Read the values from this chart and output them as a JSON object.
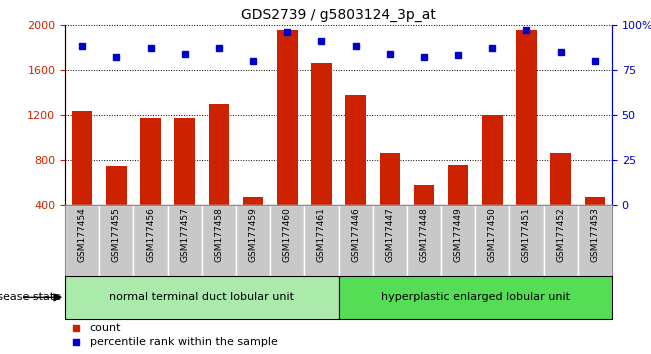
{
  "title": "GDS2739 / g5803124_3p_at",
  "samples": [
    "GSM177454",
    "GSM177455",
    "GSM177456",
    "GSM177457",
    "GSM177458",
    "GSM177459",
    "GSM177460",
    "GSM177461",
    "GSM177446",
    "GSM177447",
    "GSM177448",
    "GSM177449",
    "GSM177450",
    "GSM177451",
    "GSM177452",
    "GSM177453"
  ],
  "counts": [
    1240,
    750,
    1170,
    1170,
    1300,
    470,
    1950,
    1660,
    1380,
    860,
    580,
    760,
    1200,
    1950,
    860,
    470
  ],
  "percentiles": [
    88,
    82,
    87,
    84,
    87,
    80,
    96,
    91,
    88,
    84,
    82,
    83,
    87,
    97,
    85,
    80
  ],
  "group1_label": "normal terminal duct lobular unit",
  "group2_label": "hyperplastic enlarged lobular unit",
  "group1_count": 8,
  "group2_count": 8,
  "ylim_left": [
    400,
    2000
  ],
  "ylim_right": [
    0,
    100
  ],
  "yticks_left": [
    400,
    800,
    1200,
    1600,
    2000
  ],
  "yticks_right": [
    0,
    25,
    50,
    75,
    100
  ],
  "ytick_labels_right": [
    "0",
    "25",
    "50",
    "75",
    "100%"
  ],
  "bar_color": "#cc2200",
  "dot_color": "#0000cc",
  "bar_width": 0.6,
  "tick_bg_color": "#c8c8c8",
  "group1_bg": "#aaeaaa",
  "group2_bg": "#55dd55",
  "disease_state_label": "disease state",
  "title_fontsize": 10,
  "axis_fontsize": 8,
  "label_fontsize": 7.5
}
